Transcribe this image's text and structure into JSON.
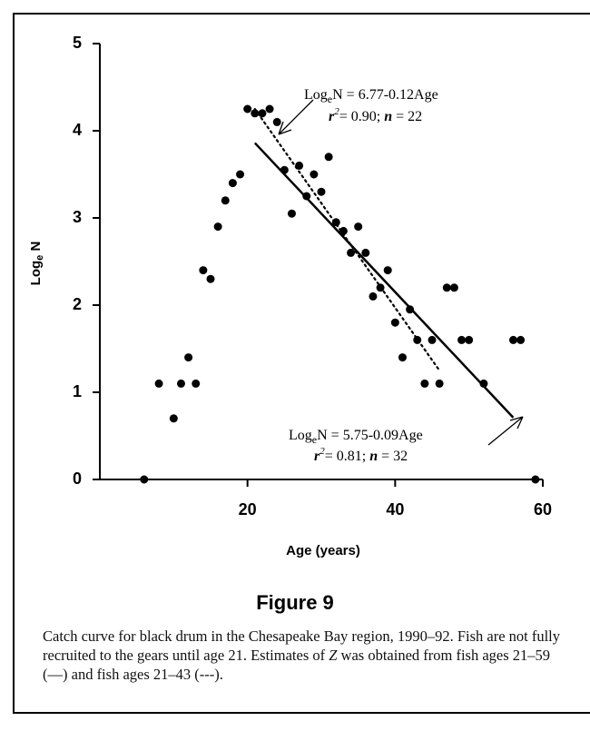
{
  "chart_data": {
    "type": "scatter",
    "x_label": "Age (years)",
    "y_label": {
      "base": "Log",
      "sub": "e",
      "rest": " N"
    },
    "xlim": [
      0,
      60
    ],
    "ylim": [
      0,
      5
    ],
    "xticks": [
      20,
      40,
      60
    ],
    "yticks": [
      0,
      1,
      2,
      3,
      4,
      5
    ],
    "color": "#000000",
    "x": [
      6,
      8,
      10,
      11,
      12,
      13,
      14,
      15,
      16,
      17,
      18,
      19,
      20,
      21,
      22,
      23,
      24,
      25,
      26,
      27,
      28,
      29,
      30,
      31,
      32,
      33,
      34,
      35,
      36,
      37,
      38,
      39,
      40,
      41,
      42,
      43,
      44,
      45,
      46,
      47,
      48,
      49,
      50,
      52,
      56,
      57,
      59
    ],
    "values": [
      0,
      1.1,
      0.7,
      1.1,
      1.4,
      1.1,
      2.4,
      2.3,
      2.9,
      3.2,
      3.4,
      3.5,
      4.25,
      4.2,
      4.2,
      4.25,
      4.1,
      3.55,
      3.05,
      3.6,
      3.25,
      3.5,
      3.3,
      3.7,
      2.95,
      2.85,
      2.6,
      2.9,
      2.6,
      2.1,
      2.2,
      2.4,
      1.8,
      1.4,
      1.95,
      1.6,
      1.1,
      1.6,
      1.1,
      2.2,
      2.2,
      1.6,
      1.6,
      1.1,
      1.6,
      1.6,
      0
    ],
    "lines": [
      {
        "style": "dotted",
        "x": [
          21,
          46
        ],
        "y": [
          4.25,
          1.25
        ]
      },
      {
        "style": "solid",
        "x": [
          21,
          56
        ],
        "y": [
          3.86,
          0.71
        ]
      }
    ],
    "annotations": [
      {
        "eq_base": "Log",
        "eq_sub": "e",
        "eq_rest": "N = 6.77-0.12Age",
        "r": "r",
        "r_sup": "2",
        "r_rest": "= 0.90; ",
        "n": "n",
        "n_rest": " = 22"
      },
      {
        "eq_base": "Log",
        "eq_sub": "e",
        "eq_rest": "N = 5.75-0.09Age",
        "r": "r",
        "r_sup": "2",
        "r_rest": "= 0.81; ",
        "n": "n",
        "n_rest": " = 32"
      }
    ]
  },
  "figure_label": "Figure 9",
  "caption": {
    "before": "Catch curve for black drum in the Chesapeake Bay region, 1990–92. Fish are not fully recruited to the gears until age 21. Estimates of ",
    "italic": "Z",
    "after": " was obtained from fish ages 21–59 (—) and fish ages 21–43 (---)."
  }
}
